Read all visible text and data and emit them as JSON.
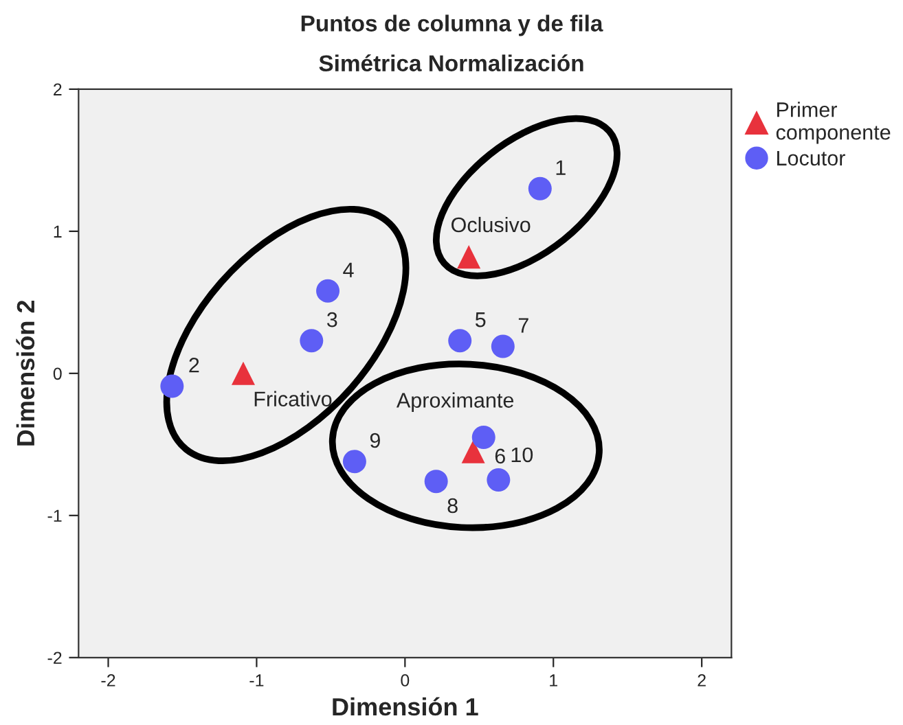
{
  "chart_data": {
    "type": "scatter",
    "title": "Puntos de columna y de fila",
    "subtitle": "Simétrica Normalización",
    "xlabel": "Dimensión 1",
    "ylabel": "Dimensión 2",
    "xlim": [
      -2.2,
      2.2
    ],
    "ylim": [
      -2,
      2
    ],
    "xticks": [
      -2,
      -1,
      0,
      1,
      2
    ],
    "yticks": [
      -2,
      -1,
      0,
      1,
      2
    ],
    "grid": false,
    "legend": "top right",
    "series": [
      {
        "name": "Primer componente",
        "color": "#e8323c",
        "marker": "triangle",
        "x": [
          0.43,
          -1.09,
          0.46
        ],
        "values": [
          0.82,
          0.0,
          -0.55
        ]
      },
      {
        "name": "Locutor",
        "color": "#5e5ef5",
        "marker": "circle",
        "x": [
          0.91,
          -1.57,
          -0.63,
          -0.52,
          0.37,
          0.53,
          0.66,
          0.21,
          -0.34,
          0.63
        ],
        "values": [
          1.3,
          -0.09,
          0.23,
          0.58,
          0.23,
          -0.45,
          0.19,
          -0.76,
          -0.62,
          -0.75
        ]
      }
    ],
    "annotations": [
      {
        "text": "Oclusivo",
        "x": 0.43,
        "y": 0.82
      },
      {
        "text": "Fricativo",
        "x": -1.09,
        "y": 0.0
      },
      {
        "text": "Aproximante",
        "x": 0.46,
        "y": -0.55
      },
      {
        "text": "1",
        "x": 0.91,
        "y": 1.3
      },
      {
        "text": "2",
        "x": -1.57,
        "y": -0.09
      },
      {
        "text": "3",
        "x": -0.63,
        "y": 0.23
      },
      {
        "text": "4",
        "x": -0.52,
        "y": 0.58
      },
      {
        "text": "5",
        "x": 0.37,
        "y": 0.23
      },
      {
        "text": "6",
        "x": 0.53,
        "y": -0.45
      },
      {
        "text": "7",
        "x": 0.66,
        "y": 0.19
      },
      {
        "text": "8",
        "x": 0.21,
        "y": -0.76
      },
      {
        "text": "9",
        "x": -0.34,
        "y": -0.62
      },
      {
        "text": "10",
        "x": 0.63,
        "y": -0.75
      }
    ]
  }
}
